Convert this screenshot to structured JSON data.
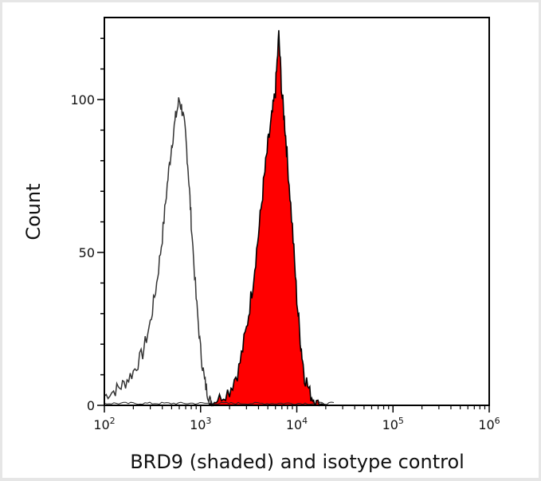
{
  "chart_data": {
    "type": "area",
    "title": "",
    "xlabel": "BRD9 (shaded) and isotype control",
    "ylabel": "Count",
    "x_scale": "log",
    "xlim": [
      100,
      1000000
    ],
    "ylim": [
      0,
      125
    ],
    "x_ticks": [
      {
        "value": 100,
        "base": "10",
        "exp": "2"
      },
      {
        "value": 1000,
        "base": "10",
        "exp": "3"
      },
      {
        "value": 10000,
        "base": "10",
        "exp": "4"
      },
      {
        "value": 100000,
        "base": "10",
        "exp": "5"
      },
      {
        "value": 1000000,
        "base": "10",
        "exp": "6"
      }
    ],
    "y_ticks": [
      {
        "value": 0,
        "label": "0"
      },
      {
        "value": 50,
        "label": "50"
      },
      {
        "value": 100,
        "label": "100"
      }
    ],
    "grid": false,
    "legend": null,
    "series": [
      {
        "name": "Isotype control",
        "style": "outline",
        "color": "#333333",
        "x": [
          100,
          130,
          160,
          200,
          250,
          300,
          350,
          400,
          450,
          500,
          550,
          600,
          650,
          700,
          750,
          800,
          900,
          1000,
          1100,
          1200,
          1300,
          1400
        ],
        "y": [
          3,
          5,
          7,
          11,
          17,
          27,
          40,
          55,
          72,
          85,
          94,
          100,
          96,
          88,
          75,
          60,
          35,
          18,
          8,
          3,
          1,
          0
        ]
      },
      {
        "name": "BRD9",
        "style": "filled",
        "color": "#ff0000",
        "outline": "#000000",
        "x": [
          1200,
          1500,
          2000,
          2500,
          3000,
          3500,
          4000,
          4500,
          5000,
          5500,
          6000,
          6500,
          7000,
          7500,
          8000,
          9000,
          10000,
          11000,
          12000,
          14000,
          16000,
          20000
        ],
        "y": [
          0,
          2,
          5,
          12,
          25,
          40,
          56,
          72,
          85,
          94,
          103,
          121,
          102,
          92,
          80,
          58,
          35,
          20,
          10,
          3,
          1,
          0
        ]
      }
    ]
  }
}
